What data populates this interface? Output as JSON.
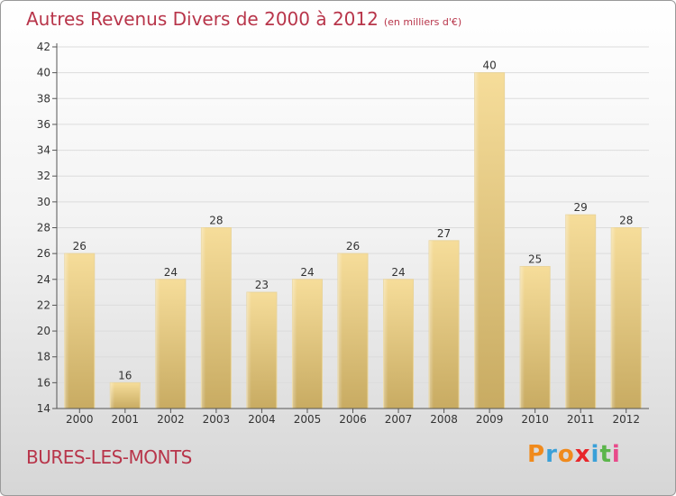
{
  "chart_data": {
    "type": "bar",
    "title": "Autres Revenus Divers de 2000 à 2012",
    "subtitle": "(en milliers d'€)",
    "categories": [
      "2000",
      "2001",
      "2002",
      "2003",
      "2004",
      "2005",
      "2006",
      "2007",
      "2008",
      "2009",
      "2010",
      "2011",
      "2012"
    ],
    "values": [
      26,
      16,
      24,
      28,
      23,
      24,
      26,
      24,
      27,
      40,
      25,
      29,
      28
    ],
    "ylim": [
      14,
      42
    ],
    "yticks": [
      14,
      16,
      18,
      20,
      22,
      24,
      26,
      28,
      30,
      32,
      34,
      36,
      38,
      40,
      42
    ],
    "grid": true,
    "bar_color": "#e8cf8c"
  },
  "place_name": "BURES-LES-MONTS",
  "logo": {
    "letters": [
      "P",
      "r",
      "o",
      "x",
      "i",
      "t",
      "i"
    ],
    "colors": [
      "#f08a1c",
      "#3aa0d8",
      "#f08a1c",
      "#e8262a",
      "#3aa0d8",
      "#5bb54a",
      "#e84a8a"
    ]
  }
}
